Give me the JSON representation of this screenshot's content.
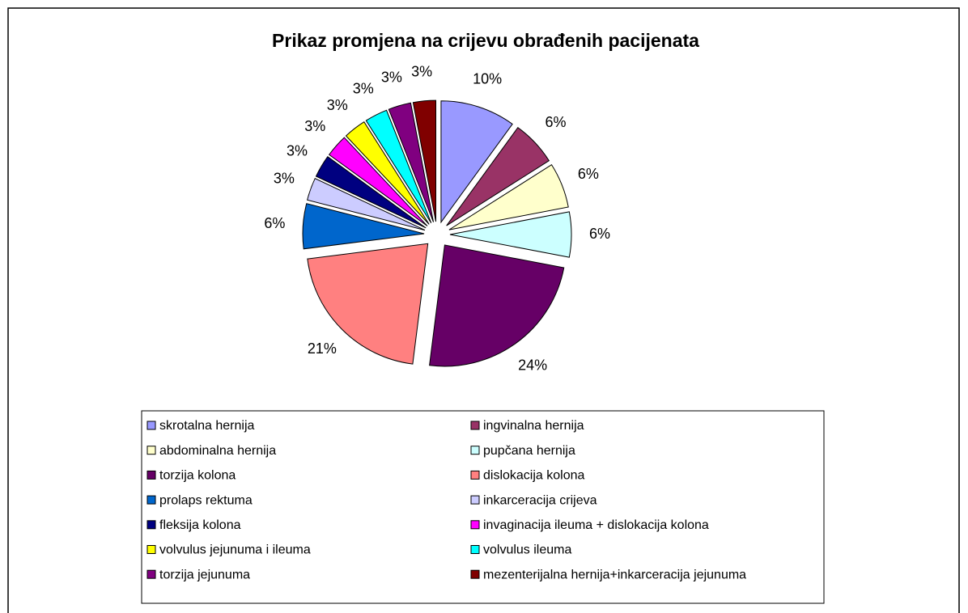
{
  "chart_data": {
    "type": "pie",
    "title": "Prikaz promjena na crijevu obrađenih pacijenata",
    "categories": [
      "skrotalna hernija",
      "ingvinalna hernija",
      "abdominalna hernija",
      "pupčana hernija",
      "torzija kolona",
      "dislokacija kolona",
      "prolaps rektuma",
      "inkarceracija crijeva",
      "fleksija kolona",
      "invaginacija ileuma + dislokacija kolona",
      "volvulus jejunuma i ileuma",
      "volvulus ileuma",
      "torzija jejunuma",
      "mezenterijalna hernija+inkarceracija jejunuma"
    ],
    "values": [
      10,
      6,
      6,
      6,
      24,
      21,
      6,
      3,
      3,
      3,
      3,
      3,
      3,
      3
    ],
    "value_labels": [
      "10%",
      "6%",
      "6%",
      "6%",
      "24%",
      "21%",
      "6%",
      "3%",
      "3%",
      "3%",
      "3%",
      "3%",
      "3%",
      "3%"
    ],
    "colors": [
      "#9999ff",
      "#993366",
      "#ffffcc",
      "#ccffff",
      "#660066",
      "#ff8080",
      "#0066cc",
      "#ccccff",
      "#000080",
      "#ff00ff",
      "#ffff00",
      "#00ffff",
      "#800080",
      "#800000"
    ],
    "legend": "bottom"
  }
}
